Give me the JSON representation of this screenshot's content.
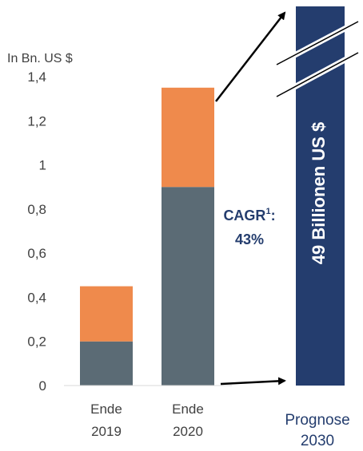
{
  "chart_data": {
    "type": "bar",
    "stacked": true,
    "unit_label": "In Bn. US $",
    "ylim": [
      0,
      1.4
    ],
    "y_ticks": [
      "0",
      "0,2",
      "0,4",
      "0,6",
      "0,8",
      "1",
      "1,2",
      "1,4"
    ],
    "y_tick_values": [
      0,
      0.2,
      0.4,
      0.6,
      0.8,
      1.0,
      1.2,
      1.4
    ],
    "categories": [
      {
        "line1": "Ende",
        "line2": "2019"
      },
      {
        "line1": "Ende",
        "line2": "2020"
      }
    ],
    "series": [
      {
        "color": "#5b6b75",
        "values": [
          0.2,
          0.9
        ]
      },
      {
        "color": "#ef8a4c",
        "values": [
          0.25,
          0.45
        ]
      }
    ],
    "cagr": {
      "line1": "CAGR",
      "sup": "1",
      "suffix": ":",
      "line2": "43%",
      "color": "#243d6e"
    },
    "forecast": {
      "value_label": "49 Billionen US $",
      "category_line1": "Prognose",
      "category_line2": "2030",
      "bar_color": "#243d6e",
      "text_color": "#243d6e"
    },
    "grid": false,
    "legend": "none"
  }
}
